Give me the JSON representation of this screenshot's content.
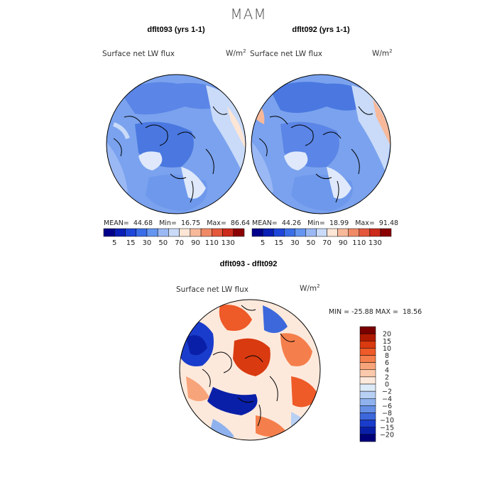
{
  "figure_title": "MAM",
  "panels": [
    {
      "title": "dflt093 (yrs 1-1)",
      "variable": "Surface net LW flux",
      "units": "W/m",
      "units_sup": "2",
      "mean_label": "MEAN=",
      "mean": "44.68",
      "min_label": "Min=",
      "min": "16.75",
      "max_label": "Max=",
      "max": "86.64"
    },
    {
      "title": "dflt092 (yrs 1-1)",
      "variable": "Surface net LW flux",
      "units": "W/m",
      "units_sup": "2",
      "mean_label": "MEAN=",
      "mean": "44.26",
      "min_label": "Min=",
      "min": "18.99",
      "max_label": "Max=",
      "max": "91.48"
    }
  ],
  "diff_panel": {
    "title": "dflt093 - dflt092",
    "variable": "Surface net LW flux",
    "units": "W/m",
    "units_sup": "2",
    "min_label": "MIN =",
    "min": "-25.88",
    "max_label": "MAX =",
    "max": "18.56"
  },
  "chart_data": [
    {
      "type": "heatmap",
      "title": "dflt093 (yrs 1-1)",
      "projection": "polar stereographic (north)",
      "colorbar": {
        "levels": [
          5,
          15,
          30,
          50,
          70,
          90,
          110,
          130
        ],
        "tick_labels": [
          "5",
          "15",
          "30",
          "50",
          "70",
          "90",
          "110",
          "130"
        ],
        "colors": [
          "#00008b",
          "#0a1fb5",
          "#1e46d9",
          "#3a6ee8",
          "#6495f0",
          "#9ab8f4",
          "#c9dbf8",
          "#fde6d6",
          "#f7b99a",
          "#f08a66",
          "#e4583b",
          "#cc2a1a",
          "#8b0000"
        ]
      }
    },
    {
      "type": "heatmap",
      "title": "dflt092 (yrs 1-1)",
      "projection": "polar stereographic (north)",
      "colorbar": {
        "levels": [
          5,
          15,
          30,
          50,
          70,
          90,
          110,
          130
        ],
        "tick_labels": [
          "5",
          "15",
          "30",
          "50",
          "70",
          "90",
          "110",
          "130"
        ],
        "colors": [
          "#00008b",
          "#0a1fb5",
          "#1e46d9",
          "#3a6ee8",
          "#6495f0",
          "#9ab8f4",
          "#c9dbf8",
          "#fde6d6",
          "#f7b99a",
          "#f08a66",
          "#e4583b",
          "#cc2a1a",
          "#8b0000"
        ]
      }
    },
    {
      "type": "heatmap",
      "title": "dflt093 - dflt092",
      "projection": "polar stereographic (north)",
      "colorbar": {
        "levels": [
          -20,
          -15,
          -10,
          -8,
          -6,
          -4,
          -2,
          0,
          2,
          4,
          6,
          8,
          10,
          15,
          20
        ],
        "tick_labels": [
          "20",
          "15",
          "10",
          "8",
          "6",
          "4",
          "2",
          "0",
          "−2",
          "−4",
          "−6",
          "−8",
          "−10",
          "−15",
          "−20"
        ],
        "colors_top_to_bottom": [
          "#7a0000",
          "#b01a00",
          "#d93a10",
          "#ee5a28",
          "#f57f4c",
          "#f8a47a",
          "#fbc9ab",
          "#fde9dc",
          "#ddeaf8",
          "#b8d0f4",
          "#8fb2ee",
          "#6690e6",
          "#3d68dc",
          "#1a3ccc",
          "#0a1fa8",
          "#00007a"
        ]
      }
    }
  ]
}
